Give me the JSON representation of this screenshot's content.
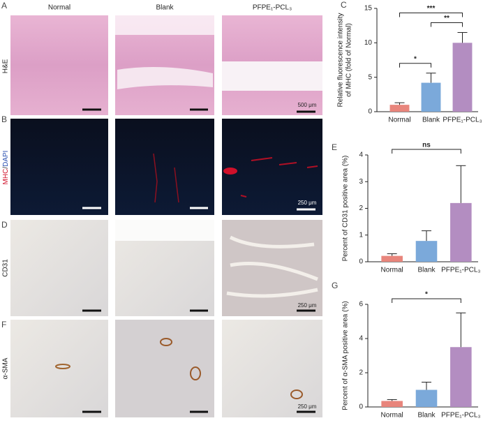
{
  "figure": {
    "column_headers": [
      "Normal",
      "Blank",
      "PFPE₁-PCL₃"
    ],
    "panel_letters": [
      "A",
      "B",
      "D",
      "F"
    ],
    "row_labels": [
      "H&E",
      "CD31",
      "α-SMA"
    ],
    "mhc_dapi_label": [
      "MHC",
      "/",
      "DAPI"
    ],
    "scale_labels": [
      "500 μm",
      "250 μm",
      "250 μm",
      "250 μm"
    ]
  },
  "chart_data": [
    {
      "type": "bar",
      "letter": "C",
      "ylabel": [
        "Relative fluorescence intensity",
        "of MHC (fold of Normal)"
      ],
      "categories": [
        "Normal",
        "Blank",
        "PFPE₁-PCL₃"
      ],
      "values": [
        1.0,
        4.2,
        10.0
      ],
      "errors": [
        0.3,
        1.4,
        1.5
      ],
      "colors": [
        "#e8857c",
        "#7ba9da",
        "#b38dc1"
      ],
      "ylim": [
        0,
        15
      ],
      "yticks": [
        0,
        5,
        10,
        15
      ],
      "significance": [
        {
          "label": "*",
          "between": [
            "Normal",
            "Blank"
          ]
        },
        {
          "label": "**",
          "between": [
            "Blank",
            "PFPE₁-PCL₃"
          ]
        },
        {
          "label": "***",
          "between": [
            "Normal",
            "PFPE₁-PCL₃"
          ]
        }
      ]
    },
    {
      "type": "bar",
      "letter": "E",
      "ylabel": [
        "Percent of CD31 positive area (%)"
      ],
      "categories": [
        "Normal",
        "Blank",
        "PFPE₁-PCL₃"
      ],
      "values": [
        0.22,
        0.78,
        2.2
      ],
      "errors": [
        0.08,
        0.38,
        1.4
      ],
      "colors": [
        "#e8857c",
        "#7ba9da",
        "#b38dc1"
      ],
      "ylim": [
        0,
        4
      ],
      "yticks": [
        0,
        1,
        2,
        3,
        4
      ],
      "significance": [
        {
          "label": "ns",
          "between": [
            "Normal",
            "PFPE₁-PCL₃"
          ]
        }
      ]
    },
    {
      "type": "bar",
      "letter": "G",
      "ylabel": [
        "Percent of α-SMA positive area (%)"
      ],
      "categories": [
        "Normal",
        "Blank",
        "PFPE₁-PCL₃"
      ],
      "values": [
        0.35,
        1.0,
        3.5
      ],
      "errors": [
        0.08,
        0.45,
        2.0
      ],
      "colors": [
        "#e8857c",
        "#7ba9da",
        "#b38dc1"
      ],
      "ylim": [
        0,
        6
      ],
      "yticks": [
        0,
        2,
        4,
        6
      ],
      "significance": [
        {
          "label": "*",
          "between": [
            "Normal",
            "PFPE₁-PCL₃"
          ]
        }
      ]
    }
  ]
}
